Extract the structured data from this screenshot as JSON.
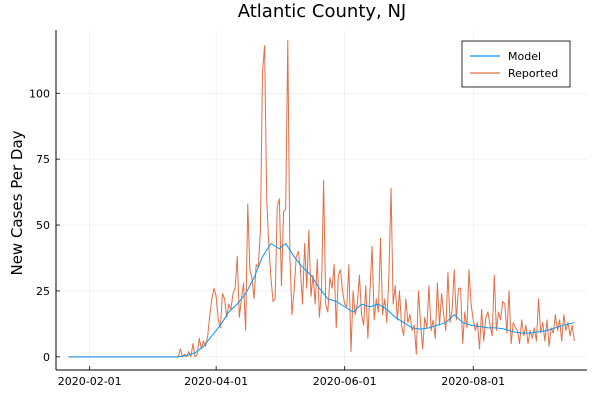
{
  "chart_data": {
    "type": "line",
    "title": "Atlantic County, NJ",
    "xlabel": "",
    "ylabel": "New Cases Per Day",
    "x_start": "2020-01-22",
    "x_end": "2020-09-18",
    "xlim": [
      "2020-01-16",
      "2020-09-24"
    ],
    "ylim": [
      -5,
      124
    ],
    "x_ticks": [
      "2020-02-01",
      "2020-04-01",
      "2020-06-01",
      "2020-08-01"
    ],
    "y_ticks": [
      0,
      25,
      50,
      75,
      100
    ],
    "grid": true,
    "legend_position": "top-right",
    "series": [
      {
        "name": "Model",
        "color": "#009af9",
        "points": [
          [
            "2020-01-22",
            0
          ],
          [
            "2020-03-14",
            0
          ],
          [
            "2020-03-18",
            0.5
          ],
          [
            "2020-03-22",
            1.5
          ],
          [
            "2020-03-26",
            4
          ],
          [
            "2020-03-30",
            8
          ],
          [
            "2020-04-03",
            12
          ],
          [
            "2020-04-07",
            17
          ],
          [
            "2020-04-11",
            20
          ],
          [
            "2020-04-15",
            24
          ],
          [
            "2020-04-19",
            30
          ],
          [
            "2020-04-23",
            38
          ],
          [
            "2020-04-27",
            43
          ],
          [
            "2020-05-01",
            41
          ],
          [
            "2020-05-04",
            43
          ],
          [
            "2020-05-08",
            38
          ],
          [
            "2020-05-12",
            34
          ],
          [
            "2020-05-16",
            31
          ],
          [
            "2020-05-20",
            26
          ],
          [
            "2020-05-24",
            22
          ],
          [
            "2020-05-28",
            21
          ],
          [
            "2020-06-01",
            19
          ],
          [
            "2020-06-05",
            17
          ],
          [
            "2020-06-09",
            20
          ],
          [
            "2020-06-13",
            19
          ],
          [
            "2020-06-17",
            20
          ],
          [
            "2020-06-21",
            18
          ],
          [
            "2020-06-25",
            15
          ],
          [
            "2020-06-29",
            13
          ],
          [
            "2020-07-03",
            11
          ],
          [
            "2020-07-07",
            10.5
          ],
          [
            "2020-07-11",
            11
          ],
          [
            "2020-07-15",
            12
          ],
          [
            "2020-07-19",
            13
          ],
          [
            "2020-07-23",
            16
          ],
          [
            "2020-07-27",
            13
          ],
          [
            "2020-07-31",
            12
          ],
          [
            "2020-08-04",
            11.5
          ],
          [
            "2020-08-08",
            11
          ],
          [
            "2020-08-12",
            11
          ],
          [
            "2020-08-16",
            10.5
          ],
          [
            "2020-08-20",
            9.5
          ],
          [
            "2020-08-24",
            9
          ],
          [
            "2020-08-28",
            9
          ],
          [
            "2020-09-01",
            9.5
          ],
          [
            "2020-09-05",
            10
          ],
          [
            "2020-09-09",
            11
          ],
          [
            "2020-09-13",
            12
          ],
          [
            "2020-09-18",
            13
          ]
        ]
      },
      {
        "name": "Reported",
        "color": "#e26f46",
        "points": [
          [
            "2020-01-22",
            0
          ],
          [
            "2020-03-14",
            0
          ],
          [
            "2020-03-15",
            3
          ],
          [
            "2020-03-16",
            0
          ],
          [
            "2020-03-17",
            1
          ],
          [
            "2020-03-18",
            0
          ],
          [
            "2020-03-19",
            2
          ],
          [
            "2020-03-20",
            0
          ],
          [
            "2020-03-21",
            5
          ],
          [
            "2020-03-22",
            0
          ],
          [
            "2020-03-23",
            1
          ],
          [
            "2020-03-24",
            7
          ],
          [
            "2020-03-25",
            3
          ],
          [
            "2020-03-26",
            6
          ],
          [
            "2020-03-27",
            4
          ],
          [
            "2020-03-28",
            8
          ],
          [
            "2020-03-29",
            16
          ],
          [
            "2020-03-30",
            22
          ],
          [
            "2020-03-31",
            26
          ],
          [
            "2020-04-01",
            23
          ],
          [
            "2020-04-02",
            14
          ],
          [
            "2020-04-03",
            11
          ],
          [
            "2020-04-04",
            24
          ],
          [
            "2020-04-05",
            22
          ],
          [
            "2020-04-06",
            15
          ],
          [
            "2020-04-07",
            20
          ],
          [
            "2020-04-08",
            18
          ],
          [
            "2020-04-09",
            24
          ],
          [
            "2020-04-10",
            26
          ],
          [
            "2020-04-11",
            38
          ],
          [
            "2020-04-12",
            15
          ],
          [
            "2020-04-13",
            22
          ],
          [
            "2020-04-14",
            28
          ],
          [
            "2020-04-15",
            10
          ],
          [
            "2020-04-16",
            58
          ],
          [
            "2020-04-17",
            33
          ],
          [
            "2020-04-18",
            30
          ],
          [
            "2020-04-19",
            22
          ],
          [
            "2020-04-20",
            35
          ],
          [
            "2020-04-21",
            34
          ],
          [
            "2020-04-22",
            48
          ],
          [
            "2020-04-23",
            108
          ],
          [
            "2020-04-24",
            118
          ],
          [
            "2020-04-25",
            60
          ],
          [
            "2020-04-26",
            42
          ],
          [
            "2020-04-27",
            30
          ],
          [
            "2020-04-28",
            21
          ],
          [
            "2020-04-29",
            22
          ],
          [
            "2020-04-30",
            57
          ],
          [
            "2020-05-01",
            60
          ],
          [
            "2020-05-02",
            27
          ],
          [
            "2020-05-03",
            55
          ],
          [
            "2020-05-04",
            56
          ],
          [
            "2020-05-05",
            120
          ],
          [
            "2020-05-06",
            38
          ],
          [
            "2020-05-07",
            16
          ],
          [
            "2020-05-08",
            25
          ],
          [
            "2020-05-09",
            38
          ],
          [
            "2020-05-10",
            40
          ],
          [
            "2020-05-11",
            33
          ],
          [
            "2020-05-12",
            20
          ],
          [
            "2020-05-13",
            43
          ],
          [
            "2020-05-14",
            26
          ],
          [
            "2020-05-15",
            48
          ],
          [
            "2020-05-16",
            23
          ],
          [
            "2020-05-17",
            31
          ],
          [
            "2020-05-18",
            20
          ],
          [
            "2020-05-19",
            37
          ],
          [
            "2020-05-20",
            15
          ],
          [
            "2020-05-21",
            25
          ],
          [
            "2020-05-22",
            67
          ],
          [
            "2020-05-23",
            20
          ],
          [
            "2020-05-24",
            17
          ],
          [
            "2020-05-25",
            30
          ],
          [
            "2020-05-26",
            26
          ],
          [
            "2020-05-27",
            35
          ],
          [
            "2020-05-28",
            11
          ],
          [
            "2020-05-29",
            31
          ],
          [
            "2020-05-30",
            33
          ],
          [
            "2020-05-31",
            25
          ],
          [
            "2020-06-01",
            20
          ],
          [
            "2020-06-02",
            19
          ],
          [
            "2020-06-03",
            35
          ],
          [
            "2020-06-04",
            2
          ],
          [
            "2020-06-05",
            25
          ],
          [
            "2020-06-06",
            16
          ],
          [
            "2020-06-07",
            20
          ],
          [
            "2020-06-08",
            31
          ],
          [
            "2020-06-09",
            16
          ],
          [
            "2020-06-10",
            12
          ],
          [
            "2020-06-11",
            27
          ],
          [
            "2020-06-12",
            7
          ],
          [
            "2020-06-13",
            25
          ],
          [
            "2020-06-14",
            42
          ],
          [
            "2020-06-15",
            14
          ],
          [
            "2020-06-16",
            22
          ],
          [
            "2020-06-17",
            17
          ],
          [
            "2020-06-18",
            45
          ],
          [
            "2020-06-19",
            16
          ],
          [
            "2020-06-20",
            22
          ],
          [
            "2020-06-21",
            13
          ],
          [
            "2020-06-22",
            31
          ],
          [
            "2020-06-23",
            64
          ],
          [
            "2020-06-24",
            20
          ],
          [
            "2020-06-25",
            27
          ],
          [
            "2020-06-26",
            14
          ],
          [
            "2020-06-27",
            25
          ],
          [
            "2020-06-28",
            12
          ],
          [
            "2020-06-29",
            8
          ],
          [
            "2020-06-30",
            22
          ],
          [
            "2020-07-01",
            13
          ],
          [
            "2020-07-02",
            16
          ],
          [
            "2020-07-03",
            10
          ],
          [
            "2020-07-04",
            12
          ],
          [
            "2020-07-05",
            1
          ],
          [
            "2020-07-06",
            25
          ],
          [
            "2020-07-07",
            13
          ],
          [
            "2020-07-08",
            3
          ],
          [
            "2020-07-09",
            15
          ],
          [
            "2020-07-10",
            11
          ],
          [
            "2020-07-11",
            27
          ],
          [
            "2020-07-12",
            10
          ],
          [
            "2020-07-13",
            14
          ],
          [
            "2020-07-14",
            7
          ],
          [
            "2020-07-15",
            28
          ],
          [
            "2020-07-16",
            12
          ],
          [
            "2020-07-17",
            24
          ],
          [
            "2020-07-18",
            16
          ],
          [
            "2020-07-19",
            10
          ],
          [
            "2020-07-20",
            32
          ],
          [
            "2020-07-21",
            13
          ],
          [
            "2020-07-22",
            18
          ],
          [
            "2020-07-23",
            33
          ],
          [
            "2020-07-24",
            14
          ],
          [
            "2020-07-25",
            26
          ],
          [
            "2020-07-26",
            26
          ],
          [
            "2020-07-27",
            5
          ],
          [
            "2020-07-28",
            17
          ],
          [
            "2020-07-29",
            11
          ],
          [
            "2020-07-30",
            33
          ],
          [
            "2020-07-31",
            20
          ],
          [
            "2020-08-01",
            14
          ],
          [
            "2020-08-02",
            10
          ],
          [
            "2020-08-03",
            13
          ],
          [
            "2020-08-04",
            3
          ],
          [
            "2020-08-05",
            18
          ],
          [
            "2020-08-06",
            6
          ],
          [
            "2020-08-07",
            15
          ],
          [
            "2020-08-08",
            17
          ],
          [
            "2020-08-09",
            12
          ],
          [
            "2020-08-10",
            8
          ],
          [
            "2020-08-11",
            31
          ],
          [
            "2020-08-12",
            10
          ],
          [
            "2020-08-13",
            17
          ],
          [
            "2020-08-14",
            14
          ],
          [
            "2020-08-15",
            21
          ],
          [
            "2020-08-16",
            20
          ],
          [
            "2020-08-17",
            9
          ],
          [
            "2020-08-18",
            25
          ],
          [
            "2020-08-19",
            5
          ],
          [
            "2020-08-20",
            13
          ],
          [
            "2020-08-21",
            11
          ],
          [
            "2020-08-22",
            10
          ],
          [
            "2020-08-23",
            5
          ],
          [
            "2020-08-24",
            14
          ],
          [
            "2020-08-25",
            8
          ],
          [
            "2020-08-26",
            12
          ],
          [
            "2020-08-27",
            5
          ],
          [
            "2020-08-28",
            10
          ],
          [
            "2020-08-29",
            7
          ],
          [
            "2020-08-30",
            11
          ],
          [
            "2020-08-31",
            6
          ],
          [
            "2020-09-01",
            22
          ],
          [
            "2020-09-02",
            9
          ],
          [
            "2020-09-03",
            13
          ],
          [
            "2020-09-04",
            6
          ],
          [
            "2020-09-05",
            14
          ],
          [
            "2020-09-06",
            4
          ],
          [
            "2020-09-07",
            11
          ],
          [
            "2020-09-08",
            9
          ],
          [
            "2020-09-09",
            16
          ],
          [
            "2020-09-10",
            10
          ],
          [
            "2020-09-11",
            14
          ],
          [
            "2020-09-12",
            6
          ],
          [
            "2020-09-13",
            16
          ],
          [
            "2020-09-14",
            10
          ],
          [
            "2020-09-15",
            13
          ],
          [
            "2020-09-16",
            8
          ],
          [
            "2020-09-17",
            12
          ],
          [
            "2020-09-18",
            6
          ]
        ]
      }
    ]
  }
}
